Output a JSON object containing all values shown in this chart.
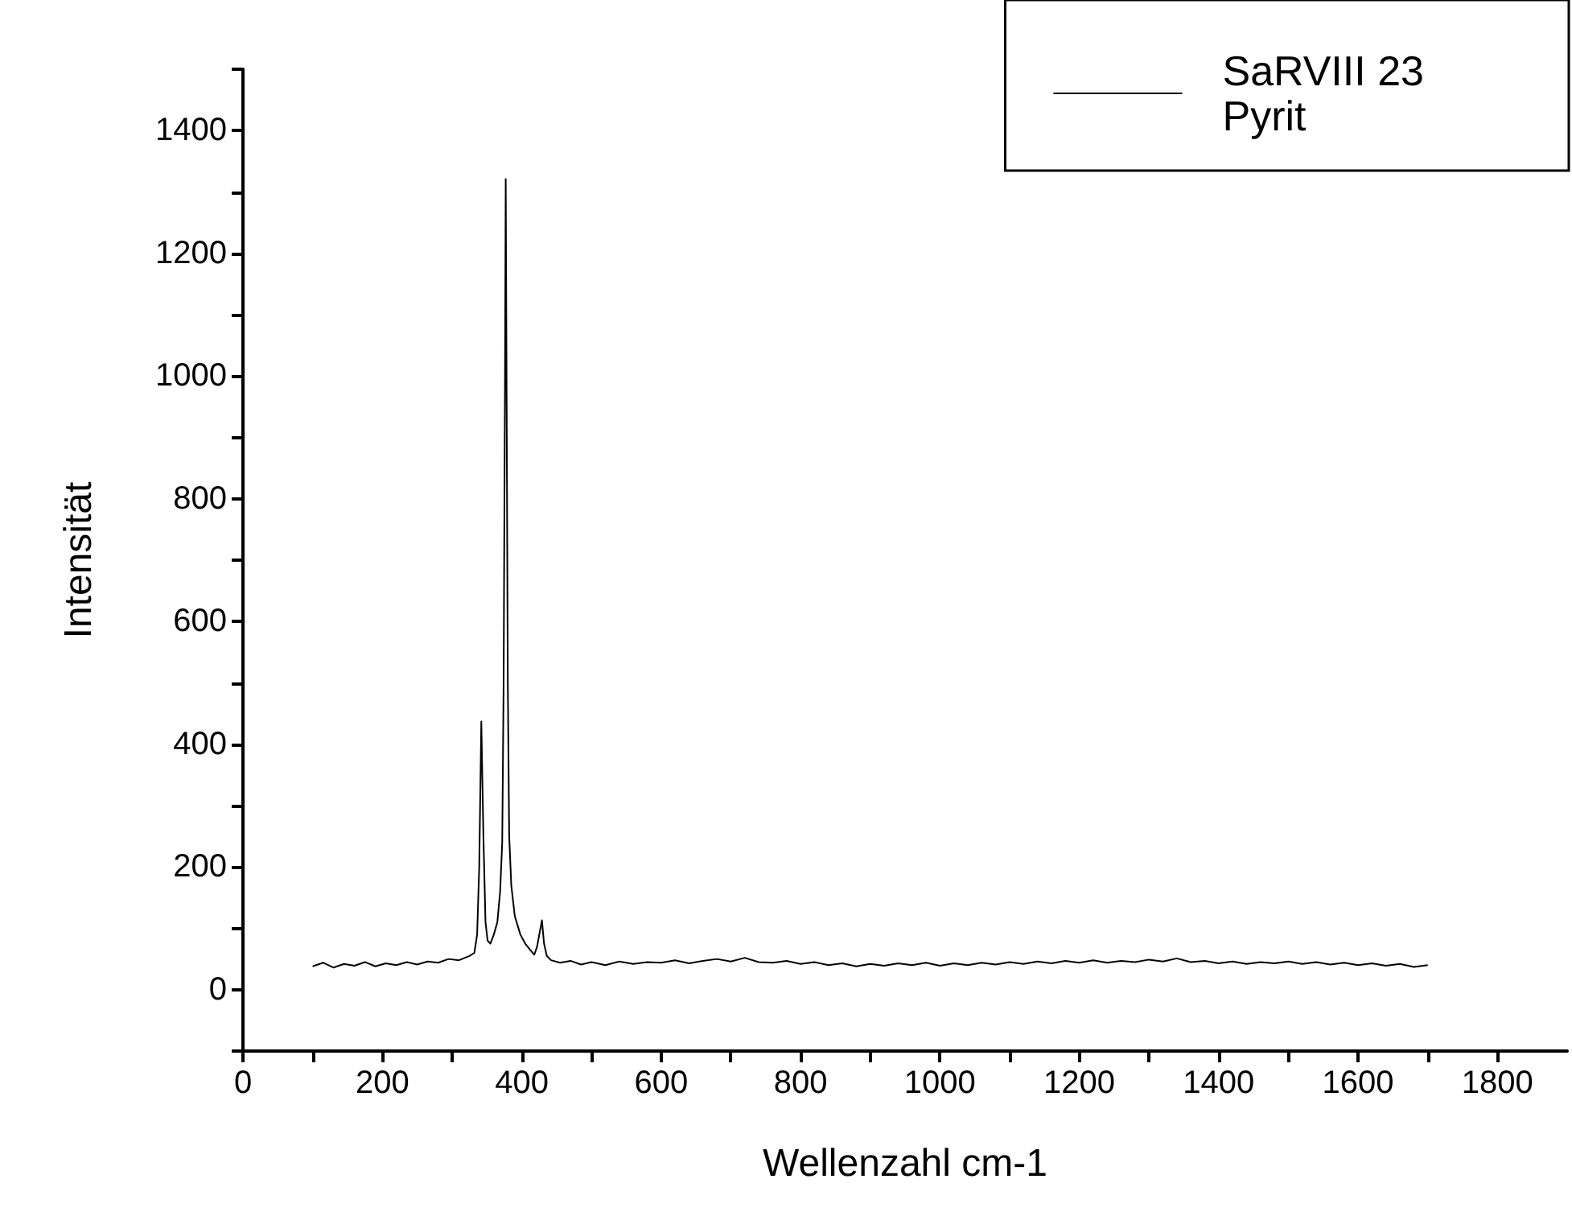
{
  "chart_data": {
    "type": "line",
    "xlabel": "Wellenzahl cm-1",
    "ylabel": "Intensität",
    "xlim": [
      0,
      1900
    ],
    "ylim": [
      -100,
      1500
    ],
    "xticks": [
      0,
      {
        "value": 100,
        "label": null
      },
      200,
      {
        "value": 300,
        "label": null
      },
      400,
      {
        "value": 500,
        "label": null
      },
      600,
      {
        "value": 700,
        "label": null
      },
      800,
      {
        "value": 900,
        "label": null
      },
      1000,
      {
        "value": 1100,
        "label": null
      },
      1200,
      {
        "value": 1300,
        "label": null
      },
      1400,
      {
        "value": 1500,
        "label": null
      },
      1600,
      {
        "value": 1700,
        "label": null
      },
      1800
    ],
    "yticks": [
      {
        "value": -100,
        "label": null
      },
      0,
      {
        "value": 100,
        "label": null
      },
      200,
      {
        "value": 300,
        "label": null
      },
      400,
      {
        "value": 500,
        "label": null
      },
      600,
      {
        "value": 700,
        "label": null
      },
      800,
      {
        "value": 900,
        "label": null
      },
      1000,
      {
        "value": 1100,
        "label": null
      },
      1200,
      {
        "value": 1300,
        "label": null
      },
      1400,
      {
        "value": 1500,
        "label": null
      }
    ],
    "grid": false,
    "legend": "top right",
    "marker": "none",
    "line_style": "solid",
    "series": [
      {
        "name": "SaRVIII 23\nPyrit",
        "color": "#000000",
        "x": [
          100,
          115,
          130,
          145,
          160,
          175,
          190,
          205,
          220,
          235,
          250,
          265,
          280,
          295,
          310,
          325,
          332,
          336,
          339,
          342,
          345,
          348,
          351,
          355,
          360,
          365,
          369,
          372,
          374,
          376,
          377,
          378,
          380,
          382,
          385,
          390,
          398,
          405,
          412,
          418,
          422,
          426,
          429,
          432,
          436,
          442,
          455,
          470,
          485,
          500,
          520,
          540,
          560,
          580,
          600,
          620,
          640,
          660,
          680,
          700,
          720,
          740,
          760,
          780,
          800,
          820,
          840,
          860,
          880,
          900,
          920,
          940,
          960,
          980,
          1000,
          1020,
          1040,
          1060,
          1080,
          1100,
          1120,
          1140,
          1160,
          1180,
          1200,
          1220,
          1240,
          1260,
          1280,
          1300,
          1320,
          1340,
          1360,
          1380,
          1400,
          1420,
          1440,
          1460,
          1480,
          1500,
          1520,
          1540,
          1560,
          1580,
          1600,
          1620,
          1640,
          1660,
          1680,
          1700
        ],
        "values": [
          38,
          44,
          36,
          42,
          39,
          45,
          38,
          43,
          40,
          45,
          41,
          46,
          44,
          50,
          48,
          55,
          60,
          90,
          200,
          437,
          250,
          110,
          80,
          75,
          90,
          110,
          160,
          240,
          500,
          1000,
          1321,
          1050,
          500,
          250,
          170,
          120,
          90,
          75,
          65,
          57,
          70,
          95,
          113,
          75,
          55,
          48,
          44,
          47,
          41,
          45,
          40,
          46,
          42,
          45,
          44,
          48,
          43,
          47,
          50,
          46,
          52,
          45,
          44,
          47,
          42,
          45,
          40,
          43,
          38,
          42,
          39,
          43,
          40,
          44,
          39,
          43,
          40,
          44,
          41,
          45,
          42,
          46,
          43,
          47,
          44,
          48,
          44,
          47,
          45,
          49,
          46,
          51,
          45,
          47,
          43,
          46,
          42,
          45,
          43,
          46,
          42,
          45,
          41,
          44,
          40,
          43,
          39,
          42,
          37,
          40
        ]
      }
    ]
  }
}
